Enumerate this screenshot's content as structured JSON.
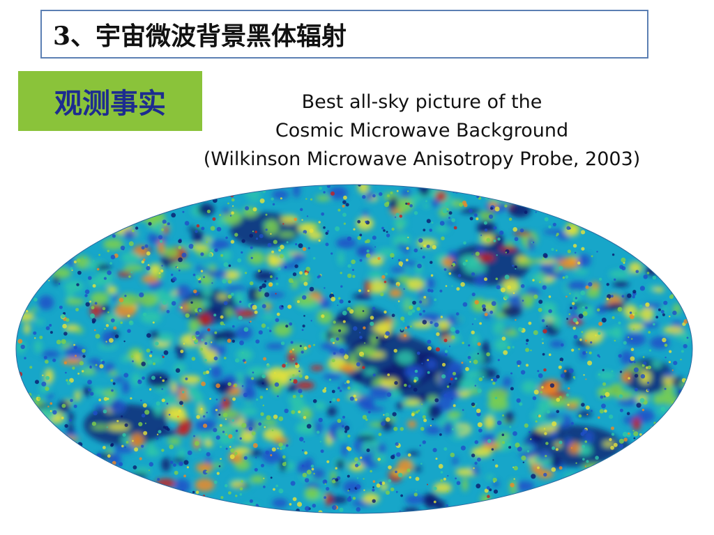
{
  "slide": {
    "title": "3、宇宙微波背景黑体辐射",
    "tag": "观测事实",
    "caption": [
      "Best all-sky picture of the",
      "Cosmic Microwave Background",
      "(Wilkinson Microwave Anisotropy Probe, 2003)"
    ]
  },
  "colors": {
    "title_border": "#5b7fb3",
    "tag_background": "#8ac33a",
    "tag_text": "#1d2c8f",
    "map_palette": [
      "#0a1a6e",
      "#1f4fc8",
      "#17a6c9",
      "#2ec7a8",
      "#7fd04a",
      "#e6e23a",
      "#f08a24",
      "#c81e1e"
    ]
  }
}
